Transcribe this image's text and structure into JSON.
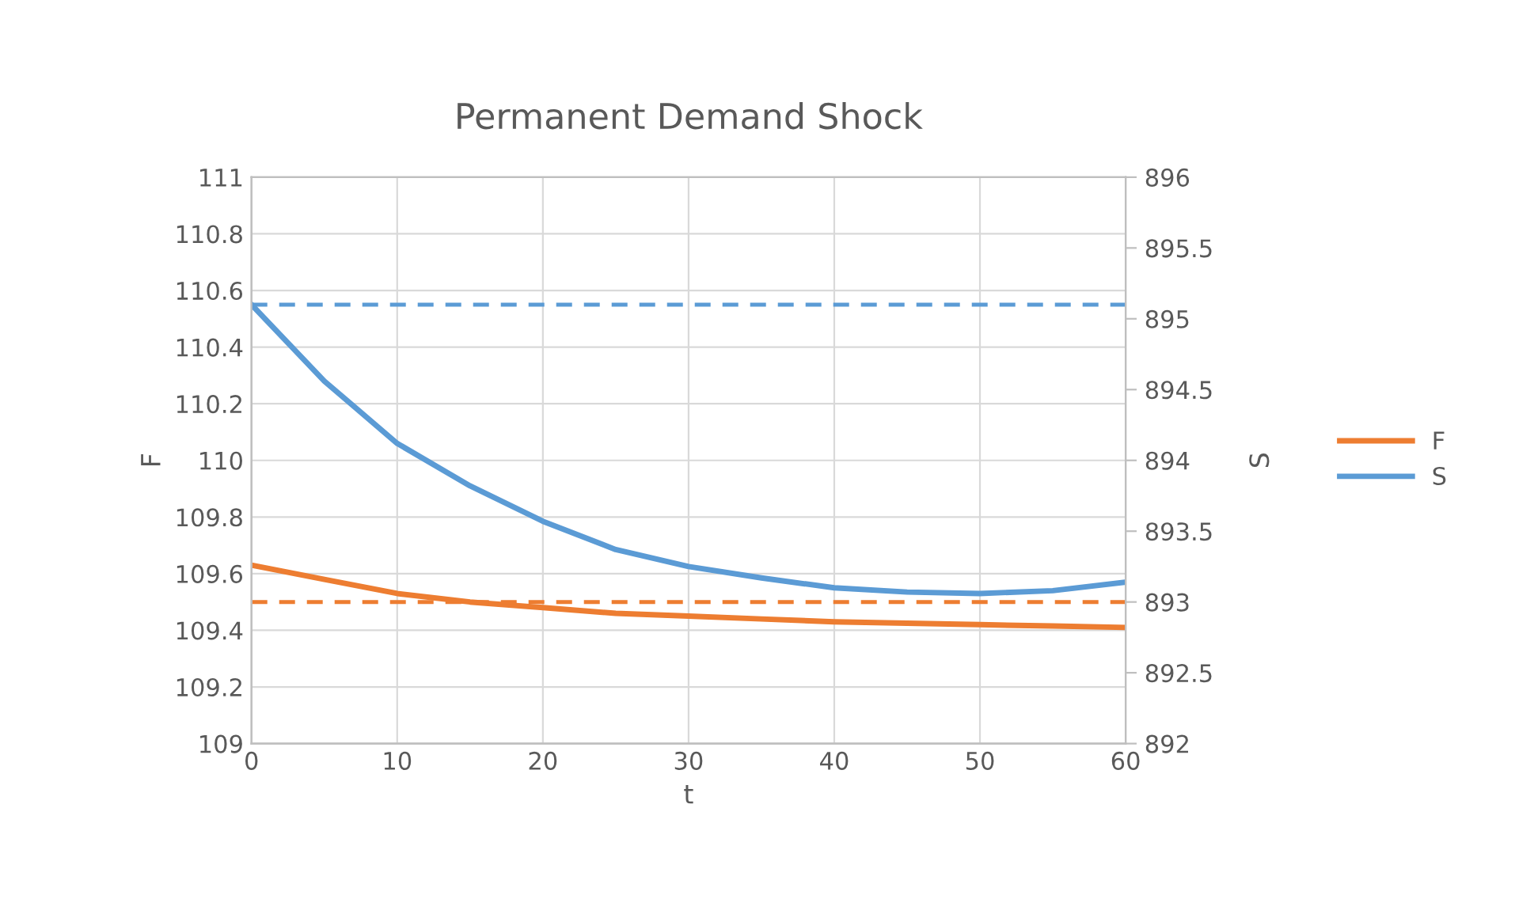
{
  "chart_data": {
    "type": "line",
    "title": "Permanent Demand Shock",
    "xlabel": "t",
    "ylabel": "F",
    "y2label": "S",
    "x": [
      0,
      5,
      10,
      15,
      20,
      25,
      30,
      35,
      40,
      45,
      50,
      55,
      60
    ],
    "series": [
      {
        "name": "F",
        "color": "#ed7d31",
        "values": [
          109.63,
          109.58,
          109.53,
          109.5,
          109.48,
          109.46,
          109.45,
          109.44,
          109.43,
          109.425,
          109.42,
          109.415,
          109.41
        ]
      },
      {
        "name": "S",
        "color": "#5b9bd5",
        "axis": "y2",
        "values": [
          895.1,
          894.56,
          894.12,
          893.82,
          893.57,
          893.37,
          893.25,
          893.17,
          893.1,
          893.07,
          893.06,
          893.08,
          893.14
        ]
      }
    ],
    "ref_lines": [
      {
        "axis": "y",
        "value": 109.5,
        "color": "#ed7d31",
        "line_style": "dashed"
      },
      {
        "axis": "y2",
        "value": 895.1,
        "color": "#5b9bd5",
        "line_style": "dashed"
      }
    ],
    "xlim": [
      0,
      60
    ],
    "xticks": [
      0,
      10,
      20,
      30,
      40,
      50,
      60
    ],
    "ylim": [
      109,
      111
    ],
    "yticks": [
      109,
      109.2,
      109.4,
      109.6,
      109.8,
      110,
      110.2,
      110.4,
      110.6,
      110.8,
      111
    ],
    "y2lim": [
      892,
      896
    ],
    "y2ticks": [
      892,
      892.5,
      893,
      893.5,
      894,
      894.5,
      895,
      895.5,
      896
    ],
    "grid": true,
    "legend": "right",
    "line_style": "solid"
  }
}
